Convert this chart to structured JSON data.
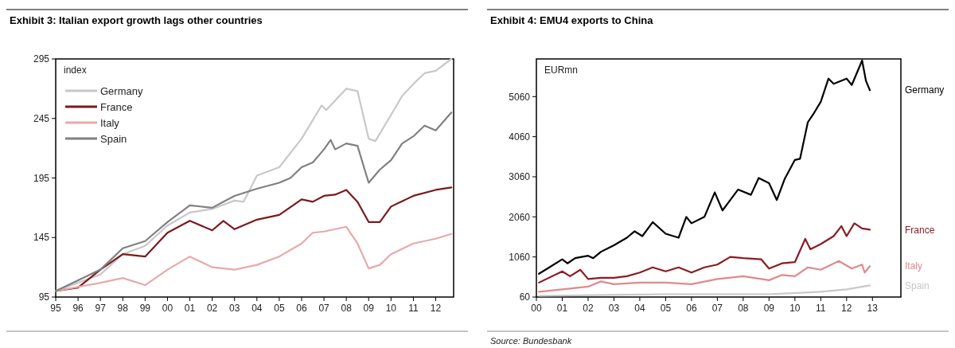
{
  "chart_data": [
    {
      "type": "line",
      "title": "Exhibit 3: Italian export growth lags other countries",
      "ylabel": "index",
      "legend": "top left",
      "xlim": [
        1995,
        2012.8
      ],
      "ylim": [
        95,
        295
      ],
      "xticks": [
        {
          "value": 1995,
          "label": "95"
        },
        {
          "value": 1996,
          "label": "96"
        },
        {
          "value": 1997,
          "label": "97"
        },
        {
          "value": 1998,
          "label": "98"
        },
        {
          "value": 1999,
          "label": "99"
        },
        {
          "value": 2000,
          "label": "00"
        },
        {
          "value": 2001,
          "label": "01"
        },
        {
          "value": 2002,
          "label": "02"
        },
        {
          "value": 2003,
          "label": "03"
        },
        {
          "value": 2004,
          "label": "04"
        },
        {
          "value": 2005,
          "label": "05"
        },
        {
          "value": 2006,
          "label": "06"
        },
        {
          "value": 2007,
          "label": "07"
        },
        {
          "value": 2008,
          "label": "08"
        },
        {
          "value": 2009,
          "label": "09"
        },
        {
          "value": 2010,
          "label": "10"
        },
        {
          "value": 2011,
          "label": "11"
        },
        {
          "value": 2012,
          "label": "12"
        }
      ],
      "yticks": [
        95,
        145,
        195,
        245,
        295
      ],
      "series": [
        {
          "name": "Germany",
          "color": "#c8c8c8",
          "x": [
            1995,
            1997,
            1998,
            1999,
            2000,
            2001,
            2002,
            2003,
            2003.4,
            2004,
            2005,
            2006,
            2006.9,
            2007.1,
            2008,
            2008.5,
            2009,
            2009.3,
            2010,
            2010.5,
            2011,
            2011.5,
            2012,
            2012.7
          ],
          "values": [
            100,
            114,
            131,
            138,
            155,
            166,
            169,
            176,
            175,
            197,
            204,
            228,
            256,
            252,
            270,
            268,
            228,
            226,
            248,
            264,
            274,
            283,
            285,
            295
          ]
        },
        {
          "name": "France",
          "color": "#7b1a1f",
          "x": [
            1995,
            1996,
            1997,
            1998,
            1999,
            2000,
            2001,
            2002,
            2002.5,
            2003,
            2004,
            2005,
            2006,
            2006.5,
            2007,
            2007.5,
            2008,
            2008.5,
            2009,
            2009.5,
            2010,
            2011,
            2012,
            2012.7
          ],
          "values": [
            100,
            103,
            118,
            131,
            129,
            149,
            159,
            151,
            159,
            152,
            160,
            164,
            177,
            175,
            180,
            181,
            185,
            175,
            158,
            158,
            171,
            180,
            185,
            187
          ]
        },
        {
          "name": "Italy",
          "color": "#e8a9aa",
          "x": [
            1995,
            1997,
            1998,
            1999,
            2000,
            2001,
            2002,
            2003,
            2004,
            2005,
            2006,
            2006.5,
            2007,
            2008,
            2008.5,
            2009,
            2009.5,
            2010,
            2011,
            2012,
            2012.7
          ],
          "values": [
            100,
            107,
            111,
            105,
            118,
            129,
            120,
            118,
            122,
            129,
            140,
            149,
            150,
            154,
            140,
            119,
            122,
            131,
            140,
            144,
            148
          ]
        },
        {
          "name": "Spain",
          "color": "#808080",
          "x": [
            1995,
            1997,
            1998,
            1999,
            2000,
            2001,
            2002,
            2003,
            2004,
            2005,
            2005.5,
            2006,
            2006.5,
            2007,
            2007.3,
            2007.5,
            2008,
            2008.5,
            2009,
            2009.5,
            2010,
            2010.5,
            2011,
            2011.5,
            2012,
            2012.7
          ],
          "values": [
            100,
            118,
            136,
            142,
            158,
            172,
            170,
            180,
            186,
            191,
            195,
            204,
            208,
            219,
            227,
            219,
            224,
            222,
            191,
            202,
            210,
            224,
            230,
            239,
            235,
            250
          ]
        }
      ]
    },
    {
      "type": "line",
      "title": "Exhibit 4: EMU4 exports to China",
      "ylabel": "EURmn",
      "annotations": [
        "Source: Bundesbank"
      ],
      "xlim": [
        2000,
        2014.1
      ],
      "ylim": [
        60,
        6000
      ],
      "xticks": [
        {
          "value": 2000,
          "label": "00"
        },
        {
          "value": 2001,
          "label": "01"
        },
        {
          "value": 2002,
          "label": "02"
        },
        {
          "value": 2003,
          "label": "03"
        },
        {
          "value": 2004,
          "label": "04"
        },
        {
          "value": 2005,
          "label": "05"
        },
        {
          "value": 2006,
          "label": "06"
        },
        {
          "value": 2007,
          "label": "07"
        },
        {
          "value": 2008,
          "label": "08"
        },
        {
          "value": 2009,
          "label": "09"
        },
        {
          "value": 2010,
          "label": "10"
        },
        {
          "value": 2011,
          "label": "11"
        },
        {
          "value": 2012,
          "label": "12"
        },
        {
          "value": 2013,
          "label": "13"
        }
      ],
      "yticks": [
        60,
        1060,
        2060,
        3060,
        4060,
        5060
      ],
      "series": [
        {
          "name": "Germany",
          "color": "#000000",
          "x": [
            2000.1,
            2000.5,
            2001,
            2001.2,
            2001.5,
            2002,
            2002.2,
            2002.5,
            2003,
            2003.5,
            2003.8,
            2004.1,
            2004.5,
            2005,
            2005.5,
            2005.8,
            2006,
            2006.5,
            2006.9,
            2007.2,
            2007.8,
            2008.3,
            2008.6,
            2009,
            2009.3,
            2009.6,
            2010,
            2010.2,
            2010.5,
            2010.7,
            2011,
            2011.3,
            2011.5,
            2012,
            2012.2,
            2012.6,
            2012.75,
            2012.9
          ],
          "values": [
            640,
            800,
            1000,
            900,
            1030,
            1090,
            1030,
            1190,
            1350,
            1540,
            1700,
            1580,
            1930,
            1640,
            1540,
            2060,
            1900,
            2060,
            2670,
            2220,
            2740,
            2610,
            3030,
            2900,
            2480,
            3000,
            3480,
            3510,
            4420,
            4610,
            4930,
            5510,
            5380,
            5510,
            5350,
            5960,
            5450,
            5220
          ]
        },
        {
          "name": "France",
          "color": "#8b1c24",
          "x": [
            2000.1,
            2001,
            2001.3,
            2001.7,
            2002,
            2002.5,
            2003,
            2003.5,
            2004,
            2004.5,
            2005,
            2005.5,
            2006,
            2006.5,
            2007,
            2007.5,
            2008,
            2008.7,
            2009,
            2009.5,
            2010,
            2010.4,
            2010.6,
            2011,
            2011.5,
            2011.8,
            2012,
            2012.3,
            2012.6,
            2012.9
          ],
          "values": [
            420,
            700,
            580,
            740,
            510,
            540,
            540,
            580,
            670,
            800,
            700,
            800,
            670,
            800,
            870,
            1060,
            1030,
            1000,
            770,
            900,
            930,
            1510,
            1250,
            1380,
            1580,
            1830,
            1580,
            1900,
            1770,
            1740
          ]
        },
        {
          "name": "Italy",
          "color": "#e08a8c",
          "x": [
            2000.1,
            2001,
            2002,
            2002.5,
            2003,
            2004,
            2005,
            2006,
            2007,
            2008,
            2009,
            2009.5,
            2010,
            2010.5,
            2011,
            2011.7,
            2012.2,
            2012.6,
            2012.7,
            2012.9
          ],
          "values": [
            190,
            250,
            320,
            450,
            380,
            420,
            420,
            380,
            510,
            580,
            480,
            610,
            580,
            800,
            740,
            960,
            770,
            870,
            670,
            830
          ]
        },
        {
          "name": "Spain",
          "color": "#c8c8c8",
          "x": [
            2000.1,
            2005,
            2009,
            2011,
            2012,
            2012.9
          ],
          "values": [
            90,
            130,
            130,
            190,
            250,
            350
          ]
        }
      ]
    }
  ]
}
